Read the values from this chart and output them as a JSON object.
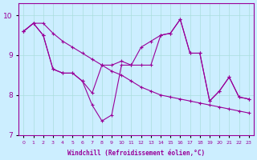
{
  "xlabel": "Windchill (Refroidissement éolien,°C)",
  "xlim": [
    -0.5,
    23.5
  ],
  "ylim": [
    7,
    10.3
  ],
  "yticks": [
    7,
    8,
    9,
    10
  ],
  "xticks": [
    0,
    1,
    2,
    3,
    4,
    5,
    6,
    7,
    8,
    9,
    10,
    11,
    12,
    13,
    14,
    15,
    16,
    17,
    18,
    19,
    20,
    21,
    22,
    23
  ],
  "line_color": "#990099",
  "bg_color": "#cceeff",
  "grid_color": "#aadddd",
  "lines": [
    [
      9.6,
      9.8,
      9.8,
      9.55,
      9.35,
      9.2,
      9.05,
      8.9,
      8.75,
      8.6,
      8.5,
      8.35,
      8.2,
      8.1,
      8.0,
      7.95,
      7.9,
      7.85,
      7.8,
      7.75,
      7.7,
      7.65,
      7.6,
      7.55
    ],
    [
      9.6,
      9.8,
      9.5,
      8.65,
      8.55,
      8.55,
      8.35,
      8.05,
      8.75,
      8.75,
      8.85,
      8.75,
      9.2,
      9.35,
      9.5,
      9.55,
      9.9,
      9.05,
      9.05,
      7.85,
      8.1,
      8.45,
      7.95,
      7.9
    ],
    [
      9.6,
      9.8,
      9.5,
      8.65,
      8.55,
      8.55,
      8.35,
      7.75,
      7.35,
      7.5,
      8.75,
      8.75,
      8.75,
      8.75,
      9.5,
      9.55,
      9.9,
      9.05,
      9.05,
      7.85,
      8.1,
      8.45,
      7.95,
      7.9
    ]
  ]
}
